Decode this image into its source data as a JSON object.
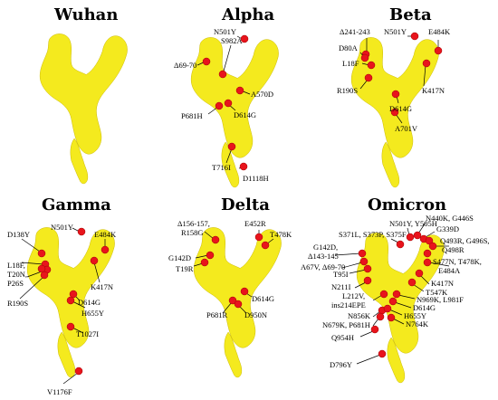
{
  "panels": [
    {
      "title": "Wuhan",
      "labels": []
    },
    {
      "title": "Alpha",
      "labels": [
        "N501Y",
        "S982A",
        "Δ69-70",
        "A570D",
        "D614G",
        "P681H",
        "T716I",
        "D1118H"
      ]
    },
    {
      "title": "Beta",
      "labels": [
        "Δ241-243",
        "D80A",
        "L18F",
        "R190S",
        "N501Y",
        "E484K",
        "K417N",
        "D614G",
        "A701V"
      ]
    },
    {
      "title": "Gamma",
      "labels": [
        "D138Y",
        "L18F,",
        "T20N,",
        "P26S",
        "R190S",
        "N501Y",
        "E484K",
        "K417N",
        "D614G",
        "H655Y",
        "T1027I",
        "V1176F"
      ]
    },
    {
      "title": "Delta",
      "labels": [
        "Δ156-157,",
        "R158G",
        "G142D",
        "T19R",
        "E452R",
        "T478K",
        "D614G",
        "P681R",
        "D950N"
      ]
    },
    {
      "title": "Omicron",
      "labels": [
        "N501Y, Y505H",
        "N440K, G446S",
        "S371L, S373P, S375F",
        "G339D",
        "G142D,",
        "Δ143-145",
        "Q493R, G496S,",
        "Q498R",
        "A67V, Δ69-70",
        "T95I",
        "S477N, T478K,",
        "E484A",
        "N211I",
        "K417N",
        "T547K",
        "L212V,",
        "ins214EPE",
        "N969K, L981F",
        "D614G",
        "N856K",
        "H655Y",
        "N679K, P681H",
        "N764K",
        "Q954H",
        "D796Y"
      ]
    }
  ],
  "colors": {
    "protein": "#f4ea1e",
    "mutation": "#e8141c"
  }
}
